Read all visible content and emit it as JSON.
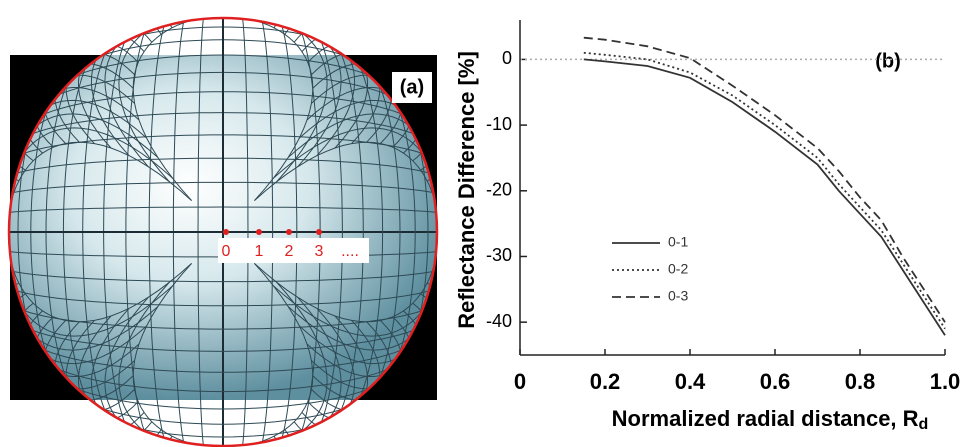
{
  "panel_a": {
    "label": "(a)",
    "point_labels": [
      "0",
      "1",
      "2",
      "3",
      "...."
    ]
  },
  "chart_data": {
    "type": "line",
    "annotation": "(b)",
    "y_label": "Reflectance Difference [%]",
    "x_label": "Normalized radial distance, R",
    "x_label_subscript": "d",
    "xlim": [
      0,
      1
    ],
    "xticks": [
      0,
      0.2,
      0.4,
      0.6,
      0.8,
      {
        "value": 1,
        "label": "1.0"
      }
    ],
    "ylim": [
      -45,
      6
    ],
    "yticks": [
      0,
      -10,
      -20,
      -30,
      -40
    ],
    "x": [
      0.15,
      0.2,
      0.3,
      0.4,
      0.5,
      0.6,
      0.7,
      0.75,
      0.8,
      0.85,
      0.9,
      0.95,
      1.0
    ],
    "series": [
      {
        "name": "0-1",
        "color": "#333333",
        "dash": "solid",
        "values": [
          0,
          -0.3,
          -1,
          -2.8,
          -6.5,
          -11,
          -16,
          -20,
          -23.5,
          -27,
          -32,
          -37,
          -42
        ]
      },
      {
        "name": "0-2",
        "color": "#333333",
        "dash": "dotted",
        "values": [
          1,
          0.7,
          0,
          -2,
          -5.5,
          -10,
          -15,
          -19,
          -22.5,
          -26,
          -31,
          -36,
          -41
        ]
      },
      {
        "name": "0-3",
        "color": "#333333",
        "dash": "dashed",
        "values": [
          3.3,
          3,
          2,
          0.2,
          -4,
          -8.5,
          -13.5,
          -17,
          -21,
          -24.5,
          -30,
          -35,
          -40
        ]
      }
    ]
  }
}
